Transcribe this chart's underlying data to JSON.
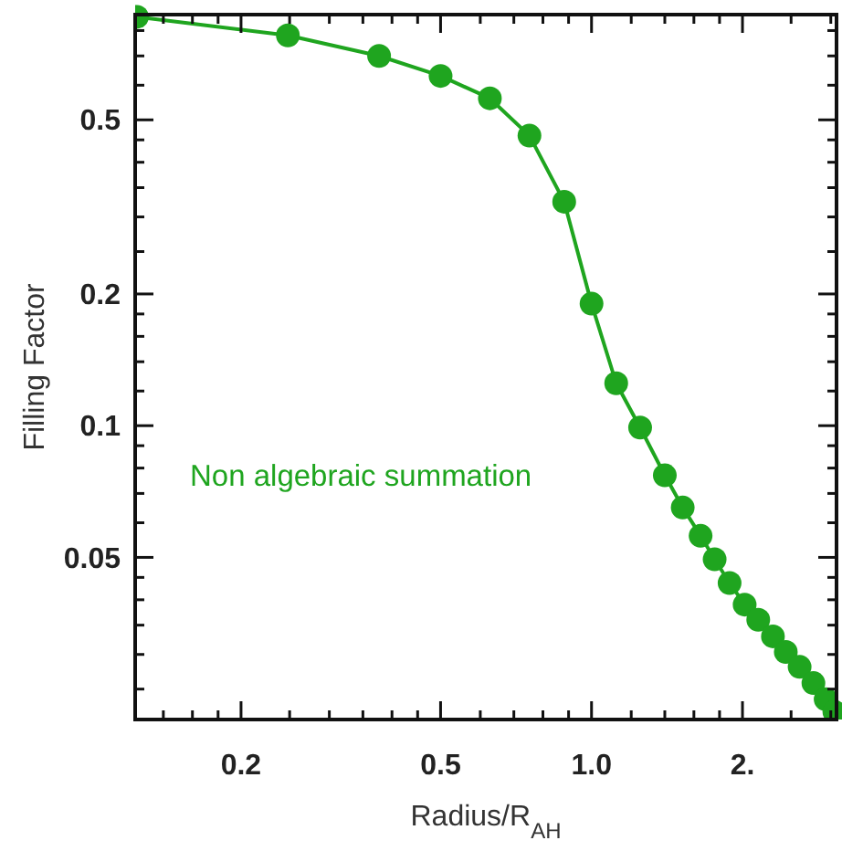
{
  "chart_data": {
    "type": "line",
    "xlabel": "Radius/R$_{AH}$",
    "ylabel": "Filling Factor",
    "log": "xy",
    "marker": "circle",
    "line_style": "solid",
    "grid": false,
    "xlim": [
      0.123,
      3.08
    ],
    "ylim": [
      0.0213,
      0.87
    ],
    "xticks": [
      {
        "value": 0.14,
        "label": null
      },
      {
        "value": 0.16,
        "label": null
      },
      {
        "value": 0.18,
        "label": null
      },
      0.2,
      {
        "value": 0.25,
        "label": null
      },
      {
        "value": 0.3,
        "label": null
      },
      {
        "value": 0.35,
        "label": null
      },
      {
        "value": 0.4,
        "label": null
      },
      {
        "value": 0.45,
        "label": null
      },
      0.5,
      {
        "value": 0.6,
        "label": null
      },
      {
        "value": 0.7,
        "label": null
      },
      {
        "value": 0.8,
        "label": null
      },
      {
        "value": 0.9,
        "label": null
      },
      {
        "value": 1,
        "label": "1.0"
      },
      {
        "value": 1.2,
        "label": null
      },
      {
        "value": 1.4,
        "label": null
      },
      {
        "value": 1.6,
        "label": null
      },
      {
        "value": 1.8,
        "label": null
      },
      {
        "value": 2,
        "label": "2."
      },
      {
        "value": 2.5,
        "label": null
      },
      {
        "value": 3,
        "label": null
      }
    ],
    "yticks": [
      {
        "value": 0.025,
        "label": null
      },
      {
        "value": 0.03,
        "label": null
      },
      {
        "value": 0.035,
        "label": null
      },
      {
        "value": 0.04,
        "label": null
      },
      {
        "value": 0.045,
        "label": null
      },
      0.05,
      {
        "value": 0.06,
        "label": null
      },
      {
        "value": 0.07,
        "label": null
      },
      {
        "value": 0.08,
        "label": null
      },
      {
        "value": 0.09,
        "label": null
      },
      0.1,
      {
        "value": 0.12,
        "label": null
      },
      {
        "value": 0.14,
        "label": null
      },
      {
        "value": 0.16,
        "label": null
      },
      {
        "value": 0.18,
        "label": null
      },
      0.2,
      {
        "value": 0.25,
        "label": null
      },
      {
        "value": 0.3,
        "label": null
      },
      {
        "value": 0.35,
        "label": null
      },
      {
        "value": 0.4,
        "label": null
      },
      {
        "value": 0.45,
        "label": null
      },
      0.5,
      {
        "value": 0.6,
        "label": null
      },
      {
        "value": 0.7,
        "label": null
      },
      {
        "value": 0.8,
        "label": null
      }
    ],
    "series": [
      {
        "name": "Non algebraic summation",
        "color": "#1fa51f",
        "x": [
          0.124,
          0.248,
          0.377,
          0.5,
          0.627,
          0.752,
          0.882,
          1.0,
          1.12,
          1.25,
          1.4,
          1.52,
          1.65,
          1.76,
          1.885,
          2.02,
          2.15,
          2.3,
          2.44,
          2.6,
          2.77,
          2.93,
          3.05
        ],
        "values": [
          0.86,
          0.78,
          0.7,
          0.63,
          0.56,
          0.46,
          0.325,
          0.19,
          0.125,
          0.099,
          0.077,
          0.065,
          0.056,
          0.0495,
          0.0437,
          0.039,
          0.036,
          0.033,
          0.0304,
          0.0281,
          0.0258,
          0.0237,
          0.0222
        ]
      }
    ]
  }
}
